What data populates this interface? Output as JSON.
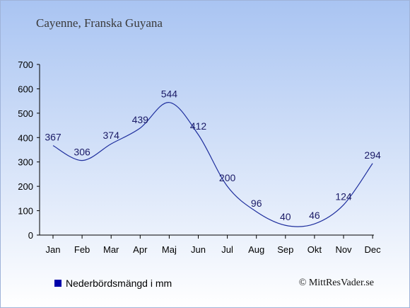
{
  "header": {
    "subtitle": "Cayenne, Franska Guyana"
  },
  "legend": {
    "label": "Nederbördsmängd i mm",
    "color": "#0000aa"
  },
  "credit": "© MittResVader.se",
  "chart_data": {
    "type": "line",
    "categories": [
      "Jan",
      "Feb",
      "Mar",
      "Apr",
      "Maj",
      "Jun",
      "Jul",
      "Aug",
      "Sep",
      "Okt",
      "Nov",
      "Dec"
    ],
    "series": [
      {
        "name": "Nederbördsmängd i mm",
        "values": [
          367,
          306,
          374,
          439,
          544,
          412,
          200,
          96,
          40,
          46,
          124,
          294
        ]
      }
    ],
    "ylim": [
      0,
      700
    ],
    "yticks": [
      0,
      100,
      200,
      300,
      400,
      500,
      600,
      700
    ],
    "line_color": "#1f2f9e",
    "grid": false
  }
}
